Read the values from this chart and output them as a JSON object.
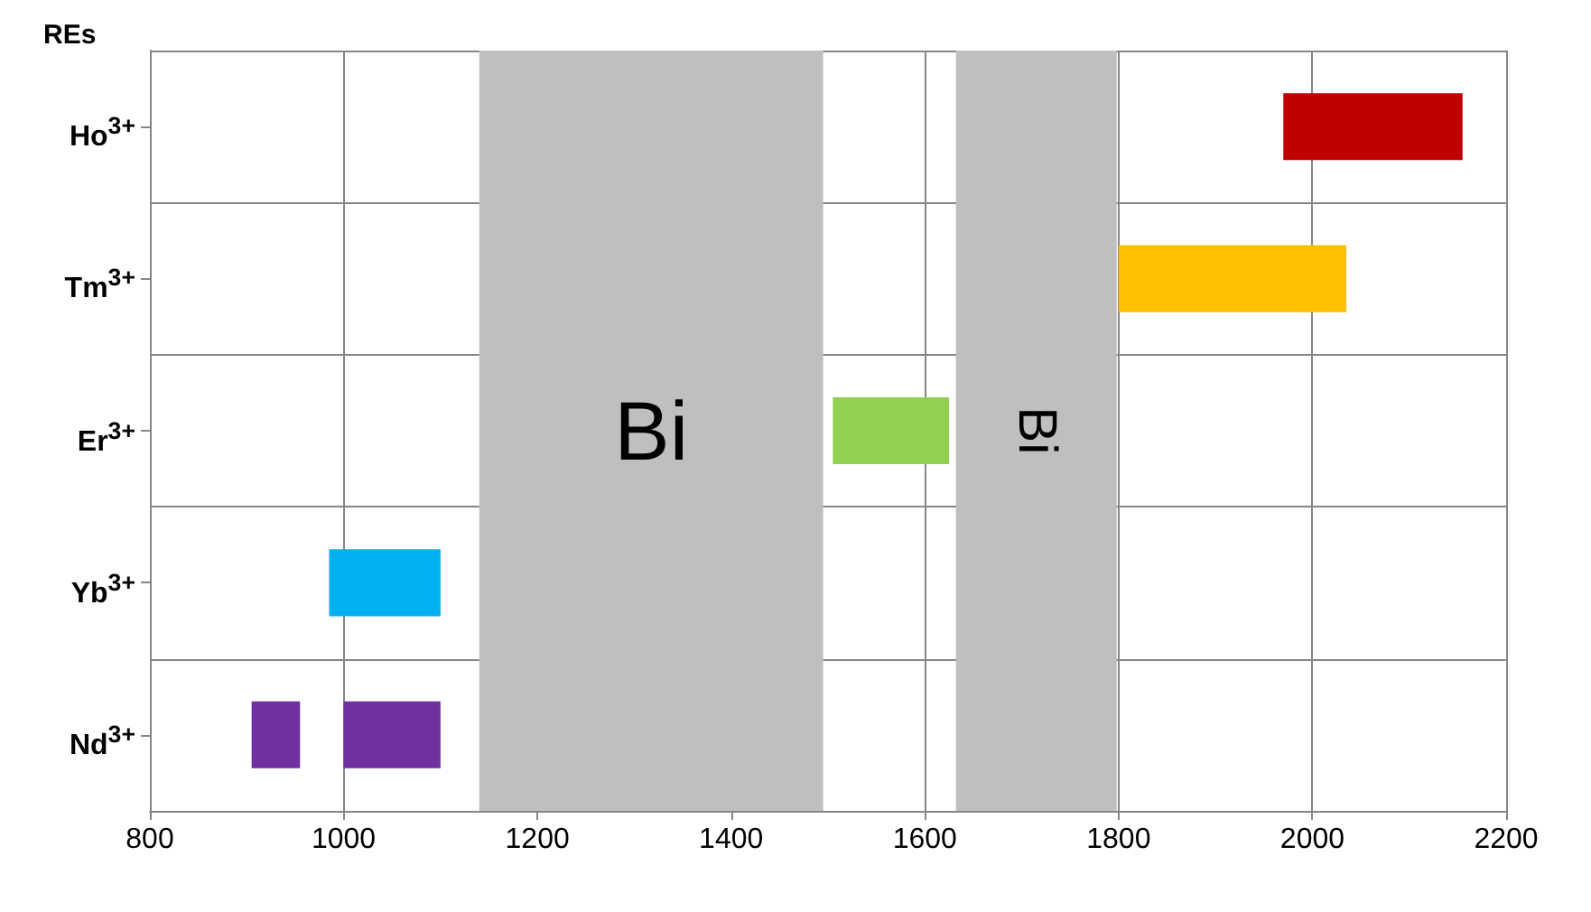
{
  "chart_data": {
    "type": "bar",
    "orientation": "horizontal",
    "ylabel": "REs",
    "categories": [
      "Ho$^{3+}$",
      "Tm$^{3+}$",
      "Er$^{3+}$",
      "Yb$^{3+}$",
      "Nd$^{3+}$"
    ],
    "series": [
      {
        "base": [
          1970,
          1800,
          1505,
          985,
          905
        ],
        "values": [
          185,
          235,
          120,
          115,
          50
        ],
        "colors": [
          "#c00000",
          "#ffc000",
          "#92d050",
          "#00b0f0",
          "#7030a0"
        ]
      },
      {
        "base": [
          null,
          null,
          null,
          null,
          1000
        ],
        "values": [
          null,
          null,
          null,
          null,
          100
        ],
        "colors": [
          null,
          null,
          null,
          null,
          "#7030a0"
        ]
      }
    ],
    "bands": [
      {
        "axis": "x",
        "from": 1140,
        "to": 1495,
        "label": "Bi",
        "color": "#bfbfbf"
      },
      {
        "axis": "x",
        "from": 1632,
        "to": 1798,
        "label": "Bi",
        "color": "#bfbfbf"
      }
    ],
    "xlim": [
      800,
      2200
    ],
    "xticks": [
      800,
      1000,
      1200,
      1400,
      1600,
      1800,
      2000,
      2200
    ],
    "grid": true
  }
}
